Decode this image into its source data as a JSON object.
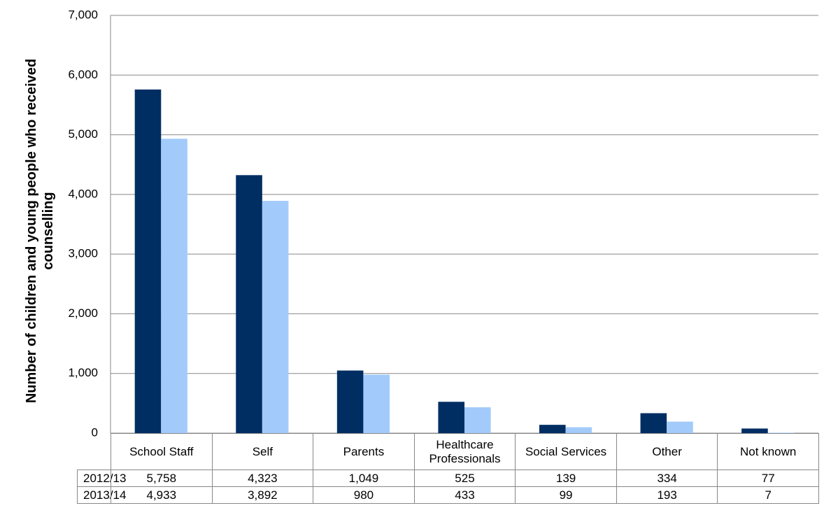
{
  "chart_data": {
    "type": "bar",
    "y_label": "Number of children and young people who received counselling",
    "categories": [
      "School Staff",
      "Self",
      "Parents",
      "Healthcare Professionals",
      "Social Services",
      "Other",
      "Not known"
    ],
    "series": [
      {
        "name": "2012/13",
        "color": "#002e63",
        "values": [
          5758,
          4323,
          1049,
          525,
          139,
          334,
          77
        ],
        "value_labels": [
          "5,758",
          "4,323",
          "1,049",
          "525",
          "139",
          "334",
          "77"
        ]
      },
      {
        "name": "2013/14",
        "color": "#a2cbfb",
        "values": [
          4933,
          3892,
          980,
          433,
          99,
          193,
          7
        ],
        "value_labels": [
          "4,933",
          "3,892",
          "980",
          "433",
          "99",
          "193",
          "7"
        ]
      }
    ],
    "ylim": [
      0,
      7000
    ],
    "yticks": [
      0,
      {
        "value": 1000,
        "label": "1,000"
      },
      {
        "value": 2000,
        "label": "2,000"
      },
      {
        "value": 3000,
        "label": "3,000"
      },
      {
        "value": 4000,
        "label": "4,000"
      },
      {
        "value": 5000,
        "label": "5,000"
      },
      {
        "value": 6000,
        "label": "6,000"
      },
      {
        "value": 7000,
        "label": "7,000"
      }
    ],
    "grid": true
  }
}
